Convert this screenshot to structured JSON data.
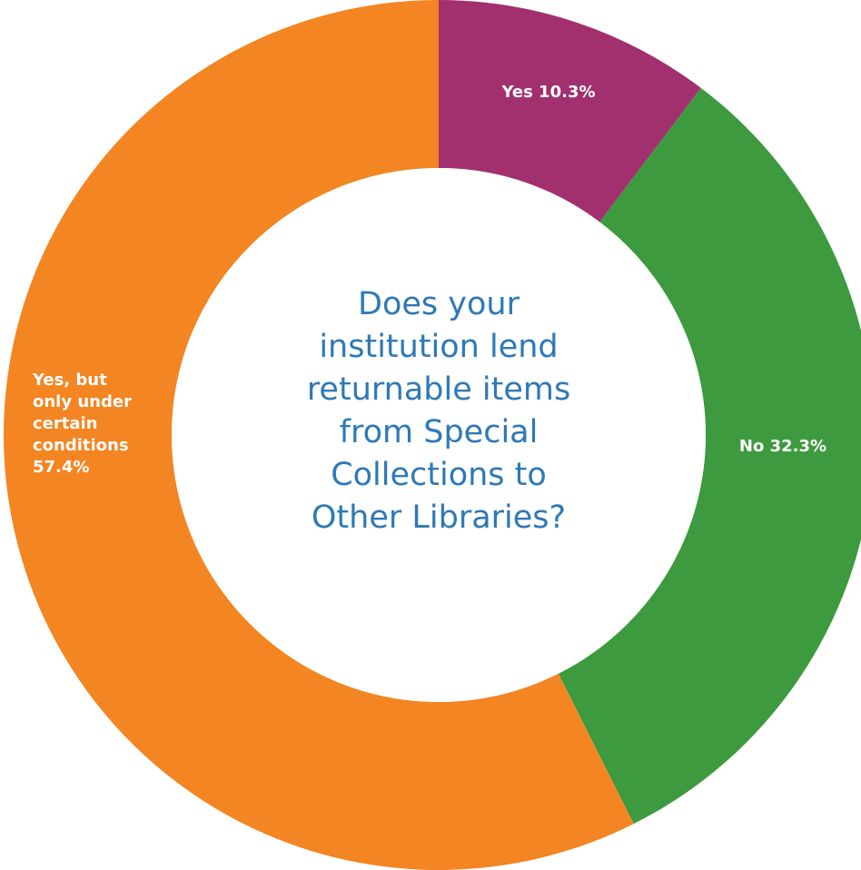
{
  "chart_data": {
    "type": "pie",
    "variant": "donut",
    "title": "Does your institution lend returnable items from Special Collections to Other Libraries?",
    "title_lines": [
      "Does your",
      "institution lend",
      "returnable items",
      "from Special",
      "Collections to",
      "Other Libraries?"
    ],
    "legend": "none",
    "slices": [
      {
        "category": "Yes",
        "value": 10.3,
        "color": "#a2306f",
        "label_lines": [
          "Yes 10.3%"
        ]
      },
      {
        "category": "No",
        "value": 32.3,
        "color": "#3d9a3e",
        "label_lines": [
          "No 32.3%"
        ]
      },
      {
        "category": "Yes, but only under certain conditions",
        "value": 57.4,
        "color": "#f38522",
        "label_lines": [
          "Yes, but",
          "only under",
          "certain",
          "conditions",
          "57.4%"
        ]
      }
    ],
    "center_color": "#2e79b6"
  }
}
